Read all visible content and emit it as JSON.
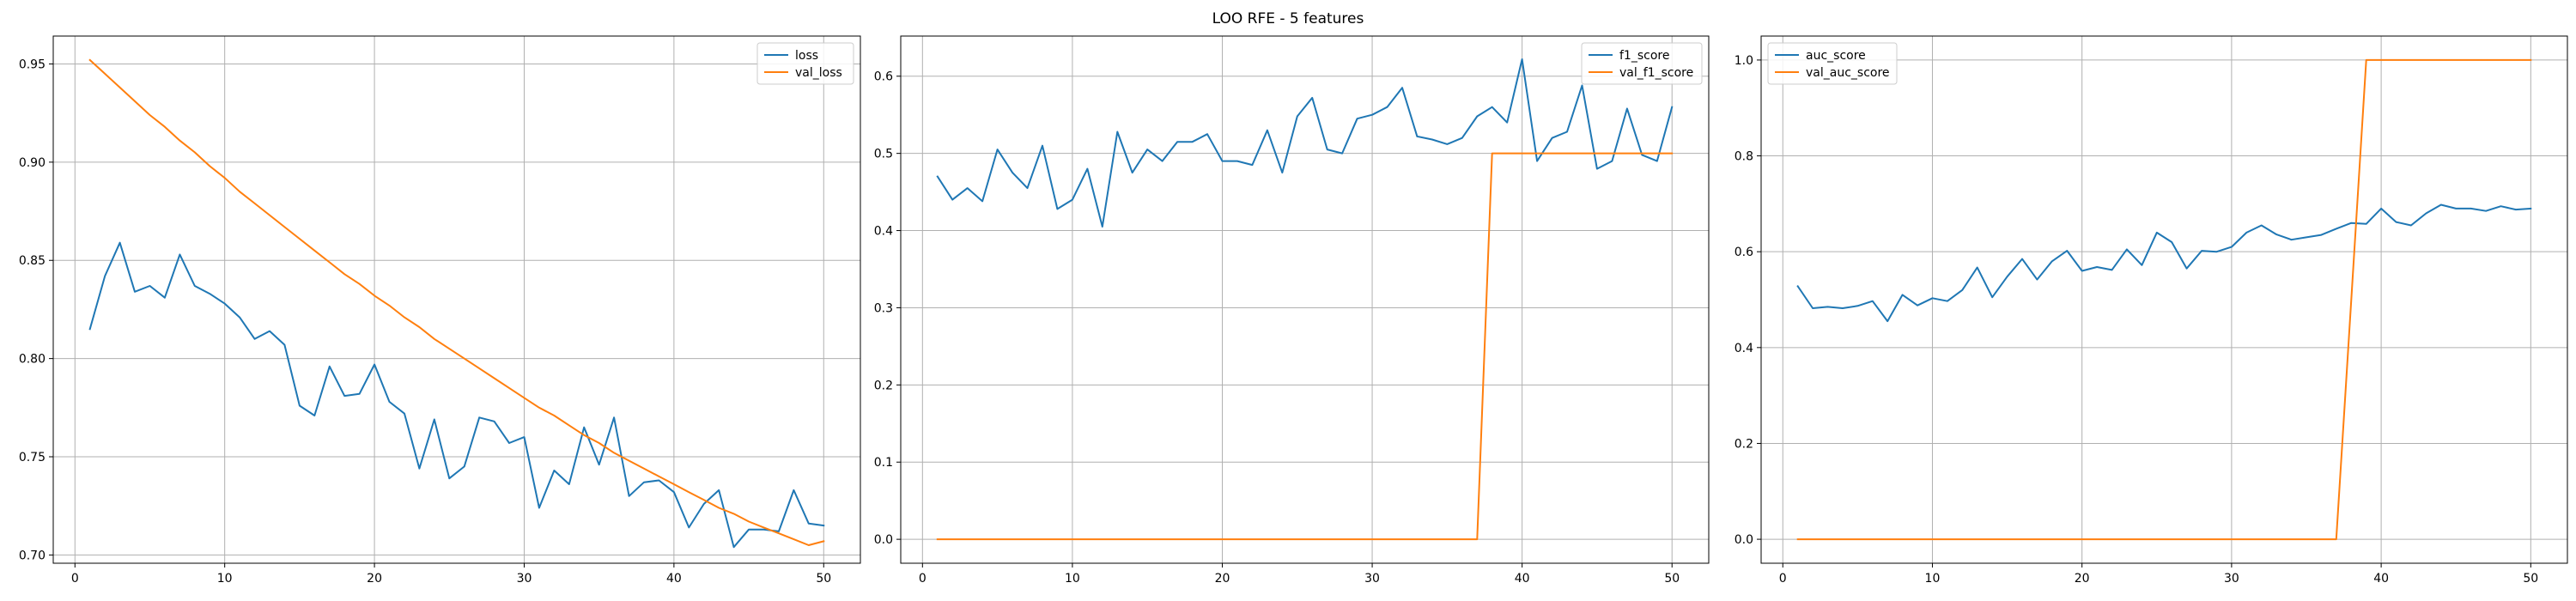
{
  "figure": {
    "suptitle": "LOO RFE - 5 features",
    "colors": {
      "series_1": "#1f77b4",
      "series_2": "#ff7f0e",
      "grid": "#b0b0b0"
    }
  },
  "chart_data": [
    {
      "type": "line",
      "xlim": [
        -1.45,
        52.45
      ],
      "ylim": [
        0.6958,
        0.9642
      ],
      "xticks": [
        0,
        10,
        20,
        30,
        40,
        50
      ],
      "yticks": [
        0.7,
        0.75,
        0.8,
        0.85,
        0.9,
        0.95
      ],
      "ytick_labels": [
        "0.70",
        "0.75",
        "0.80",
        "0.85",
        "0.90",
        "0.95"
      ],
      "grid": true,
      "legend": "top-right",
      "x": [
        1,
        2,
        3,
        4,
        5,
        6,
        7,
        8,
        9,
        10,
        11,
        12,
        13,
        14,
        15,
        16,
        17,
        18,
        19,
        20,
        21,
        22,
        23,
        24,
        25,
        26,
        27,
        28,
        29,
        30,
        31,
        32,
        33,
        34,
        35,
        36,
        37,
        38,
        39,
        40,
        41,
        42,
        43,
        44,
        45,
        46,
        47,
        48,
        49,
        50
      ],
      "series": [
        {
          "name": "loss",
          "color": "#1f77b4",
          "values": [
            0.815,
            0.842,
            0.859,
            0.834,
            0.837,
            0.831,
            0.853,
            0.837,
            0.833,
            0.828,
            0.821,
            0.81,
            0.814,
            0.807,
            0.776,
            0.771,
            0.796,
            0.781,
            0.782,
            0.797,
            0.778,
            0.772,
            0.744,
            0.769,
            0.739,
            0.745,
            0.77,
            0.768,
            0.757,
            0.76,
            0.724,
            0.743,
            0.736,
            0.765,
            0.746,
            0.77,
            0.73,
            0.737,
            0.738,
            0.732,
            0.714,
            0.726,
            0.733,
            0.704,
            0.713,
            0.713,
            0.712,
            0.733,
            0.716,
            0.715
          ]
        },
        {
          "name": "val_loss",
          "color": "#ff7f0e",
          "values": [
            0.952,
            0.945,
            0.938,
            0.931,
            0.924,
            0.918,
            0.911,
            0.905,
            0.898,
            0.892,
            0.885,
            0.879,
            0.873,
            0.867,
            0.861,
            0.855,
            0.849,
            0.843,
            0.838,
            0.832,
            0.827,
            0.821,
            0.816,
            0.81,
            0.805,
            0.8,
            0.795,
            0.79,
            0.785,
            0.78,
            0.775,
            0.771,
            0.766,
            0.761,
            0.757,
            0.752,
            0.748,
            0.744,
            0.74,
            0.736,
            0.732,
            0.728,
            0.724,
            0.721,
            0.717,
            0.714,
            0.711,
            0.708,
            0.705,
            0.707
          ]
        }
      ]
    },
    {
      "type": "line",
      "xlim": [
        -1.45,
        52.45
      ],
      "ylim": [
        -0.031,
        0.652
      ],
      "xticks": [
        0,
        10,
        20,
        30,
        40,
        50
      ],
      "yticks": [
        0.0,
        0.1,
        0.2,
        0.3,
        0.4,
        0.5,
        0.6
      ],
      "ytick_labels": [
        "0.0",
        "0.1",
        "0.2",
        "0.3",
        "0.4",
        "0.5",
        "0.6"
      ],
      "grid": true,
      "legend": "top-right",
      "x": [
        1,
        2,
        3,
        4,
        5,
        6,
        7,
        8,
        9,
        10,
        11,
        12,
        13,
        14,
        15,
        16,
        17,
        18,
        19,
        20,
        21,
        22,
        23,
        24,
        25,
        26,
        27,
        28,
        29,
        30,
        31,
        32,
        33,
        34,
        35,
        36,
        37,
        38,
        39,
        40,
        41,
        42,
        43,
        44,
        45,
        46,
        47,
        48,
        49,
        50
      ],
      "series": [
        {
          "name": "f1_score",
          "color": "#1f77b4",
          "values": [
            0.47,
            0.44,
            0.455,
            0.438,
            0.505,
            0.475,
            0.455,
            0.51,
            0.428,
            0.44,
            0.48,
            0.405,
            0.528,
            0.475,
            0.505,
            0.49,
            0.515,
            0.515,
            0.525,
            0.49,
            0.49,
            0.485,
            0.53,
            0.475,
            0.548,
            0.572,
            0.505,
            0.5,
            0.545,
            0.55,
            0.56,
            0.585,
            0.522,
            0.518,
            0.512,
            0.52,
            0.548,
            0.56,
            0.54,
            0.622,
            0.49,
            0.52,
            0.528,
            0.588,
            0.48,
            0.49,
            0.558,
            0.498,
            0.49,
            0.56
          ]
        },
        {
          "name": "val_f1_score",
          "color": "#ff7f0e",
          "values": [
            0,
            0,
            0,
            0,
            0,
            0,
            0,
            0,
            0,
            0,
            0,
            0,
            0,
            0,
            0,
            0,
            0,
            0,
            0,
            0,
            0,
            0,
            0,
            0,
            0,
            0,
            0,
            0,
            0,
            0,
            0,
            0,
            0,
            0,
            0,
            0,
            0,
            0.5,
            0.5,
            0.5,
            0.5,
            0.5,
            0.5,
            0.5,
            0.5,
            0.5,
            0.5,
            0.5,
            0.5,
            0.5
          ]
        }
      ]
    },
    {
      "type": "line",
      "xlim": [
        -1.45,
        52.45
      ],
      "ylim": [
        -0.05,
        1.05
      ],
      "xticks": [
        0,
        10,
        20,
        30,
        40,
        50
      ],
      "yticks": [
        0.0,
        0.2,
        0.4,
        0.6,
        0.8,
        1.0
      ],
      "ytick_labels": [
        "0.0",
        "0.2",
        "0.4",
        "0.6",
        "0.8",
        "1.0"
      ],
      "grid": true,
      "legend": "top-left",
      "x": [
        1,
        2,
        3,
        4,
        5,
        6,
        7,
        8,
        9,
        10,
        11,
        12,
        13,
        14,
        15,
        16,
        17,
        18,
        19,
        20,
        21,
        22,
        23,
        24,
        25,
        26,
        27,
        28,
        29,
        30,
        31,
        32,
        33,
        34,
        35,
        36,
        37,
        38,
        39,
        40,
        41,
        42,
        43,
        44,
        45,
        46,
        47,
        48,
        49,
        50
      ],
      "series": [
        {
          "name": "auc_score",
          "color": "#1f77b4",
          "values": [
            0.528,
            0.482,
            0.485,
            0.482,
            0.487,
            0.497,
            0.455,
            0.51,
            0.488,
            0.503,
            0.497,
            0.52,
            0.567,
            0.505,
            0.548,
            0.585,
            0.542,
            0.58,
            0.602,
            0.56,
            0.568,
            0.562,
            0.605,
            0.572,
            0.64,
            0.62,
            0.565,
            0.602,
            0.6,
            0.61,
            0.64,
            0.655,
            0.636,
            0.625,
            0.63,
            0.635,
            0.648,
            0.66,
            0.658,
            0.69,
            0.662,
            0.655,
            0.68,
            0.698,
            0.69,
            0.69,
            0.685,
            0.695,
            0.688,
            0.69
          ]
        },
        {
          "name": "val_auc_score",
          "color": "#ff7f0e",
          "values": [
            0,
            0,
            0,
            0,
            0,
            0,
            0,
            0,
            0,
            0,
            0,
            0,
            0,
            0,
            0,
            0,
            0,
            0,
            0,
            0,
            0,
            0,
            0,
            0,
            0,
            0,
            0,
            0,
            0,
            0,
            0,
            0,
            0,
            0,
            0,
            0,
            0,
            0.5,
            1,
            1,
            1,
            1,
            1,
            1,
            1,
            1,
            1,
            1,
            1,
            1
          ]
        }
      ]
    }
  ]
}
